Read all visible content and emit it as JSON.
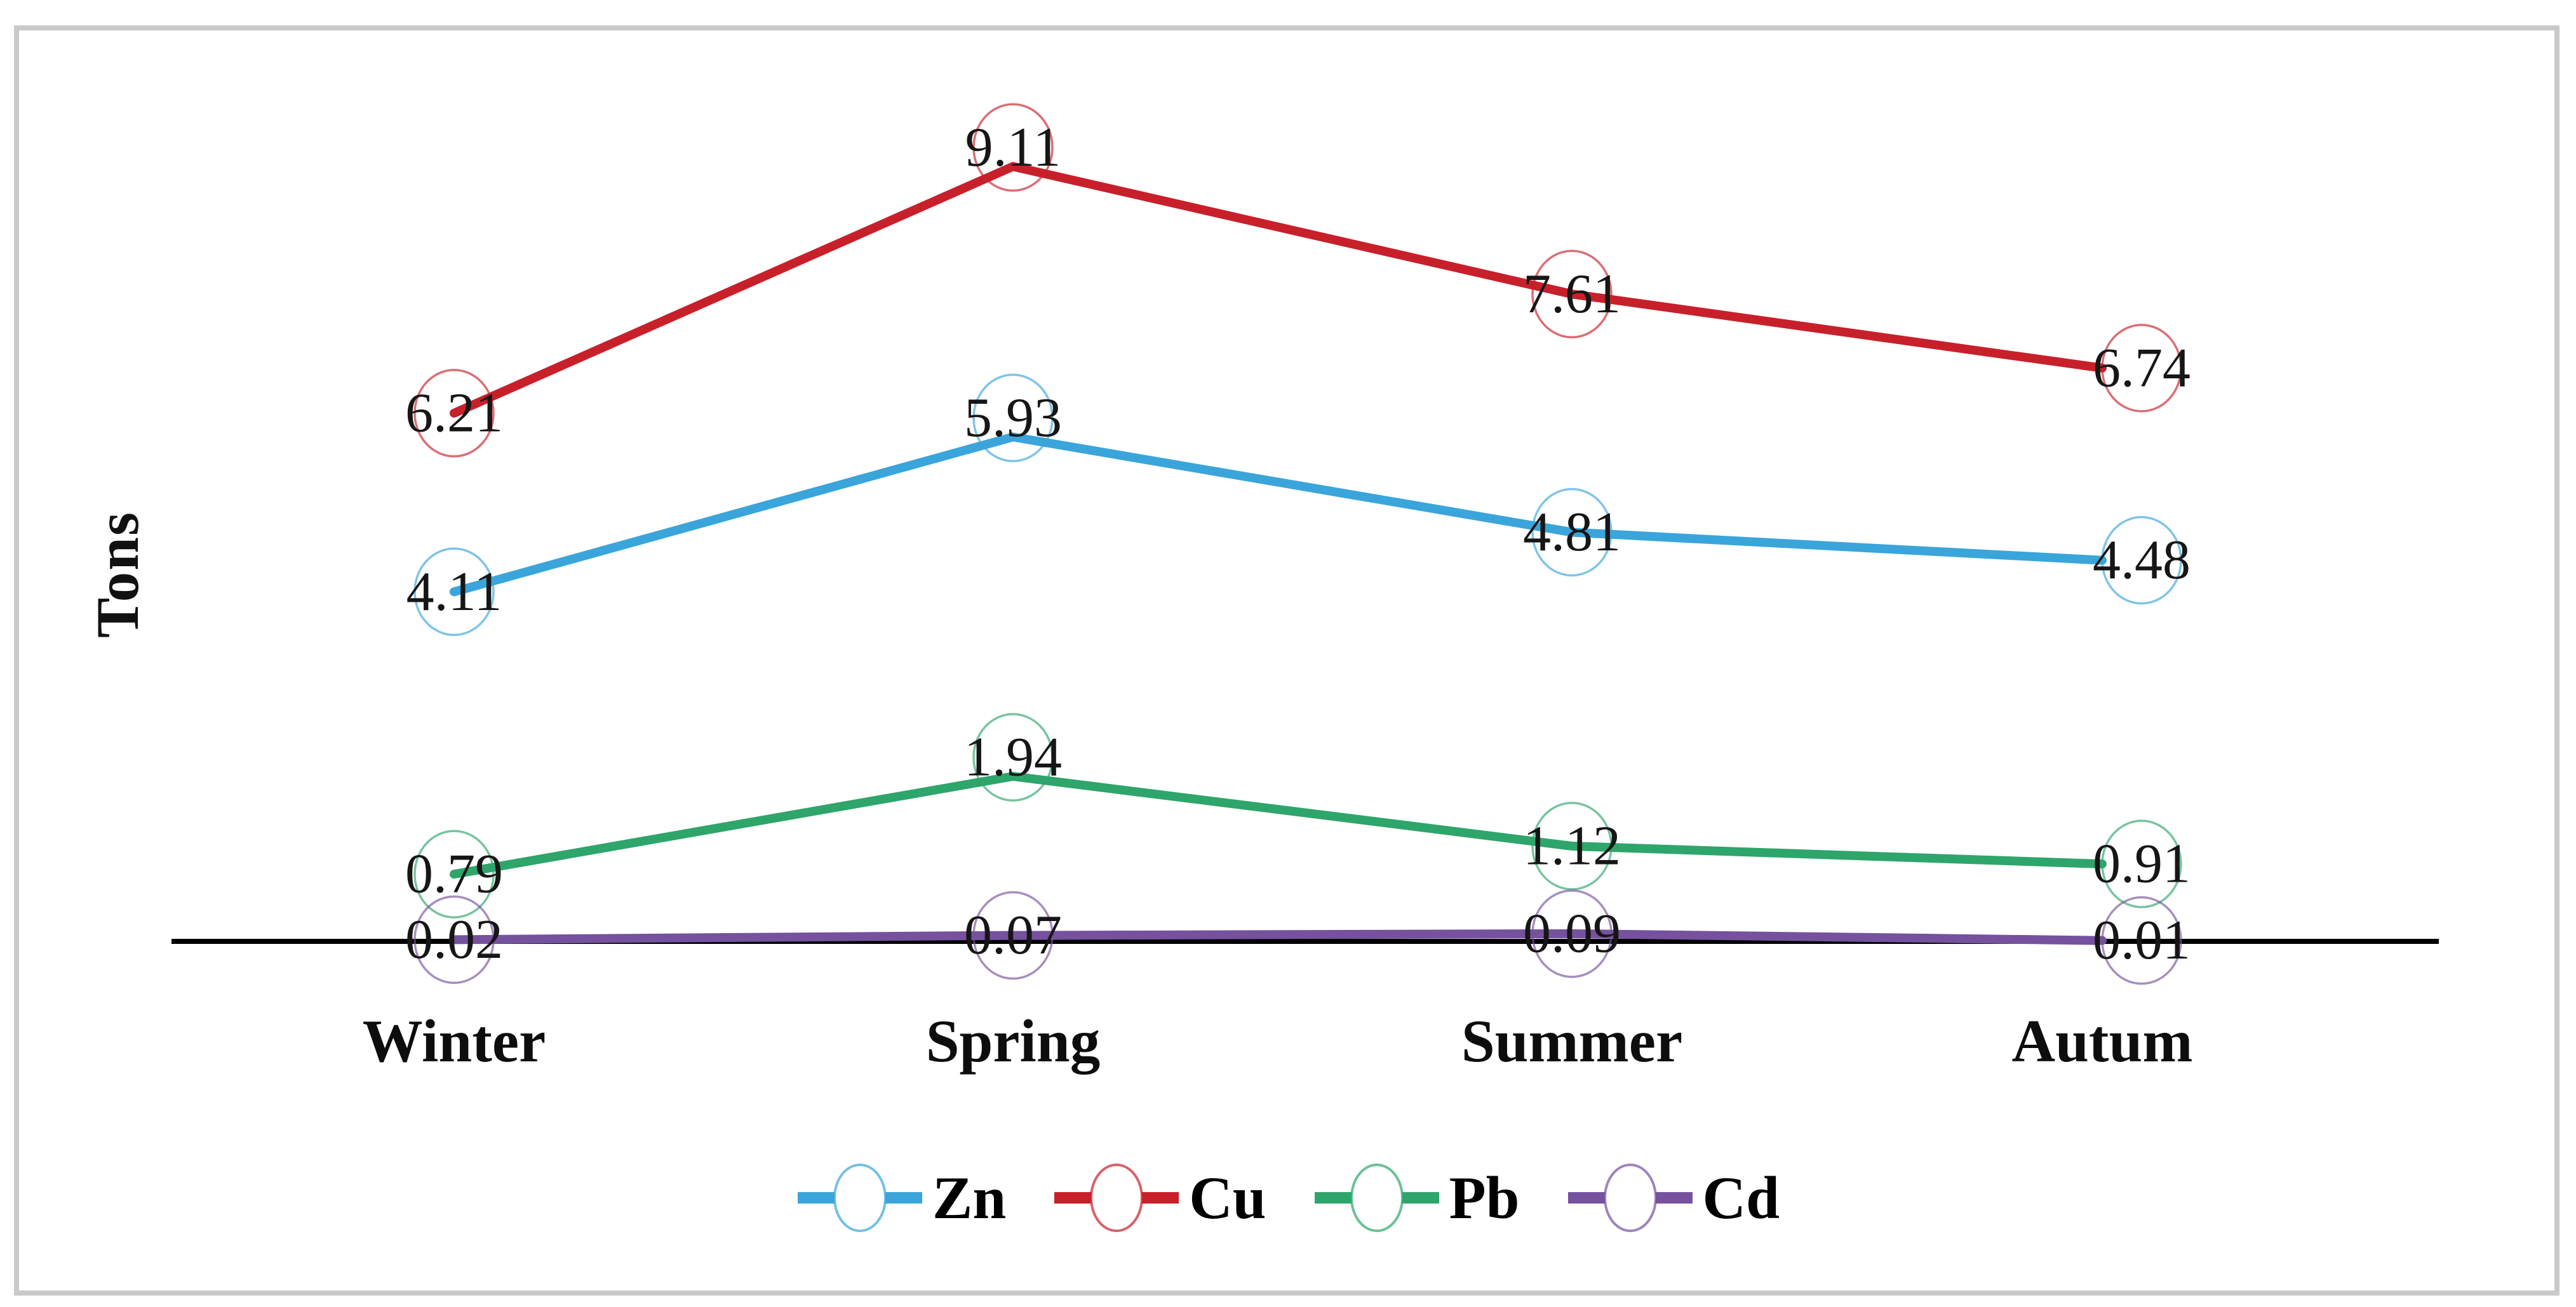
{
  "frame": {
    "border_color": "#c9c9c9",
    "background_color": "#ffffff"
  },
  "chart_data": {
    "type": "line",
    "title": "",
    "xlabel": "",
    "ylabel": "Tons",
    "categories": [
      "Winter",
      "Spring",
      "Summer",
      "Autum"
    ],
    "series": [
      {
        "name": "Zn",
        "color": "#3aa5da",
        "values": [
          4.11,
          5.93,
          4.81,
          4.48
        ]
      },
      {
        "name": "Cu",
        "color": "#c8202a",
        "values": [
          6.21,
          9.11,
          7.61,
          6.74
        ]
      },
      {
        "name": "Pb",
        "color": "#2ea56b",
        "values": [
          0.79,
          1.94,
          1.12,
          0.91
        ]
      },
      {
        "name": "Cd",
        "color": "#76519e",
        "values": [
          0.02,
          0.07,
          0.09,
          0.01
        ]
      }
    ],
    "data_labels": [
      "4.11",
      "5.93",
      "4.81",
      "4.48",
      "6.21",
      "9.11",
      "7.61",
      "6.74",
      "0.79",
      "1.94",
      "1.12",
      "0.91",
      "0.02",
      "0.07",
      "0.09",
      "0.01"
    ],
    "marker": "open-circle",
    "ylim": [
      0,
      9.5
    ],
    "grid": false,
    "y_axis_line": false,
    "x_axis_line": true,
    "axis_color": "#000000",
    "label_color": "#161616",
    "legend_position": "bottom"
  }
}
